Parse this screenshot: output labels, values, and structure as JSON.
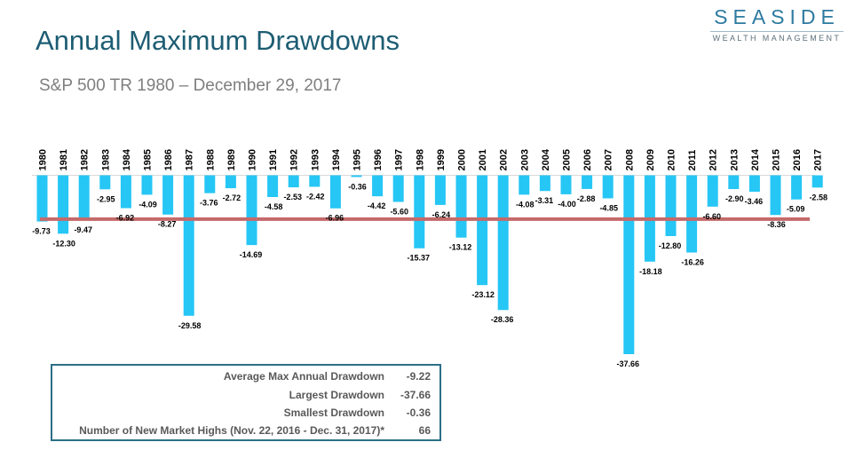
{
  "header": {
    "title": "Annual Maximum Drawdowns",
    "subtitle": "S&P 500 TR  1980 – December 29, 2017"
  },
  "logo": {
    "name": "SEASIDE",
    "tagline": "WEALTH MANAGEMENT"
  },
  "colors": {
    "bar": "#26c6f5",
    "average_line": "#c46a6a",
    "title": "#1d5d73",
    "box_border": "#2b6f86"
  },
  "chart_data": {
    "type": "bar",
    "categories": [
      "1980",
      "1981",
      "1982",
      "1983",
      "1984",
      "1985",
      "1986",
      "1987",
      "1988",
      "1989",
      "1990",
      "1991",
      "1992",
      "1993",
      "1994",
      "1995",
      "1996",
      "1997",
      "1998",
      "1999",
      "2000",
      "2001",
      "2002",
      "2003",
      "2004",
      "2005",
      "2006",
      "2007",
      "2008",
      "2009",
      "2010",
      "2011",
      "2012",
      "2013",
      "2014",
      "2015",
      "2016",
      "2017"
    ],
    "values": [
      -9.73,
      -12.3,
      -9.47,
      -2.95,
      -6.92,
      -4.09,
      -8.27,
      -29.58,
      -3.76,
      -2.72,
      -14.69,
      -4.58,
      -2.53,
      -2.42,
      -6.96,
      -0.36,
      -4.42,
      -5.6,
      -15.37,
      -6.24,
      -13.12,
      -23.12,
      -28.36,
      -4.08,
      -3.31,
      -4.0,
      -2.88,
      -4.85,
      -37.66,
      -18.18,
      -12.8,
      -16.26,
      -6.6,
      -2.9,
      -3.46,
      -8.36,
      -5.09,
      -2.58
    ],
    "data_labels": [
      "-9.73",
      "-12.30",
      "-9.47",
      "-2.95",
      "-6.92",
      "-4.09",
      "-8.27",
      "-29.58",
      "-3.76",
      "-2.72",
      "-14.69",
      "-4.58",
      "-2.53",
      "-2.42",
      "-6.96",
      "-0.36",
      "-4.42",
      "-5.60",
      "-15.37",
      "-6.24",
      "-13.12",
      "-23.12",
      "-28.36",
      "-4.08",
      "-3.31",
      "-4.00",
      "-2.88",
      "-4.85",
      "-37.66",
      "-18.18",
      "-12.80",
      "-16.26",
      "-6.60",
      "-2.90",
      "-3.46",
      "-8.36",
      "-5.09",
      "-2.58"
    ],
    "average_line_value": -9.22,
    "ylim": [
      -37.66,
      0
    ],
    "grid": false,
    "legend": "none",
    "category_axis_position": "top",
    "category_label_orientation": "vertical"
  },
  "stats": [
    {
      "label": "Average Max Annual Drawdown",
      "value": "-9.22"
    },
    {
      "label": "Largest Drawdown",
      "value": "-37.66"
    },
    {
      "label": "Smallest Drawdown",
      "value": "-0.36"
    },
    {
      "label": "Number of New Market Highs (Nov. 22, 2016 - Dec. 31, 2017)*",
      "value": "66"
    }
  ]
}
